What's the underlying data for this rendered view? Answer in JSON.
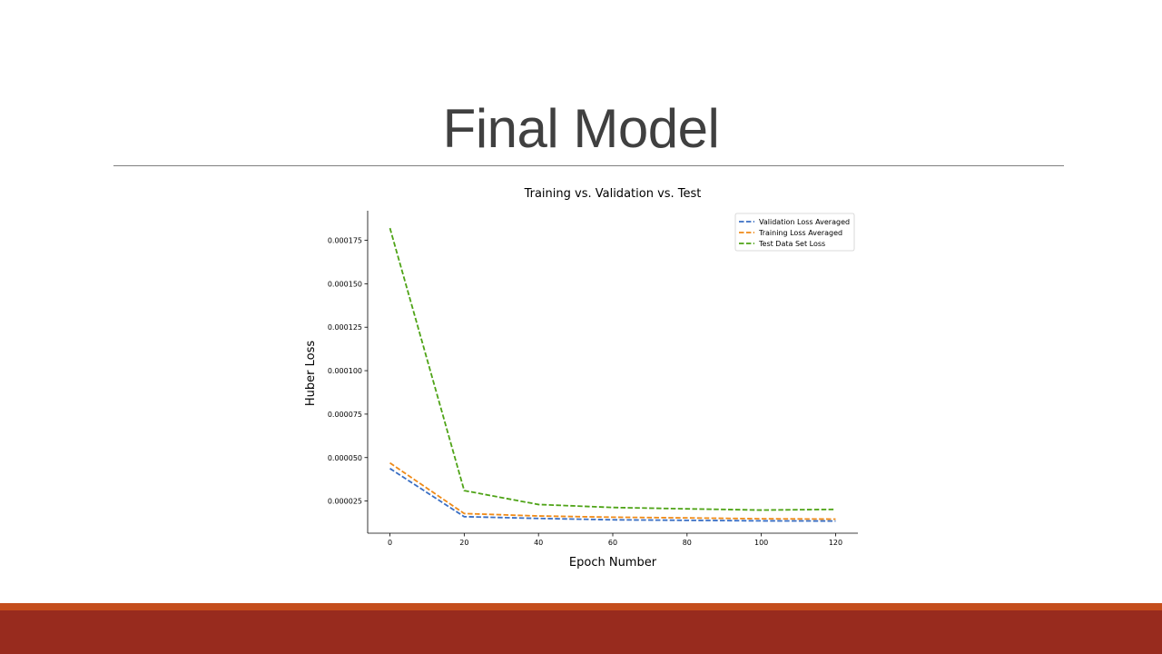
{
  "slide": {
    "title": "Final Model"
  },
  "theme": {
    "band_top": "#C44D1C",
    "band_bottom": "#982B1E",
    "title_color": "#404040"
  },
  "chart_data": {
    "type": "line",
    "title": "Training vs. Validation vs. Test",
    "xlabel": "Epoch Number",
    "ylabel": "Huber Loss",
    "x": [
      0,
      20,
      40,
      60,
      80,
      100,
      120
    ],
    "xticks": [
      0,
      20,
      40,
      60,
      80,
      100,
      120
    ],
    "xtick_labels": [
      "0",
      "20",
      "40",
      "60",
      "80",
      "100",
      "120"
    ],
    "yticks": [
      2.5e-05,
      5e-05,
      7.5e-05,
      0.0001,
      0.000125,
      0.00015,
      0.000175
    ],
    "ytick_labels": [
      "0.000025",
      "0.000050",
      "0.000075",
      "0.000100",
      "0.000125",
      "0.000150",
      "0.000175"
    ],
    "xlim": [
      -6,
      126
    ],
    "ylim": [
      6.5e-06,
      0.000192
    ],
    "grid": false,
    "legend_position": "top-right",
    "line_style": "dashed",
    "series": [
      {
        "name": "Validation Loss Averaged",
        "color": "#3A6FC4",
        "values": [
          4.37e-05,
          1.6e-05,
          1.5e-05,
          1.42e-05,
          1.39e-05,
          1.36e-05,
          1.35e-05
        ]
      },
      {
        "name": "Training Loss Averaged",
        "color": "#EF8A17",
        "values": [
          4.69e-05,
          1.78e-05,
          1.64e-05,
          1.57e-05,
          1.53e-05,
          1.48e-05,
          1.46e-05
        ]
      },
      {
        "name": "Test Data Set Loss",
        "color": "#4EA316",
        "values": [
          0.000182,
          3.1e-05,
          2.3e-05,
          2.13e-05,
          2.05e-05,
          1.98e-05,
          2.02e-05
        ]
      }
    ]
  }
}
